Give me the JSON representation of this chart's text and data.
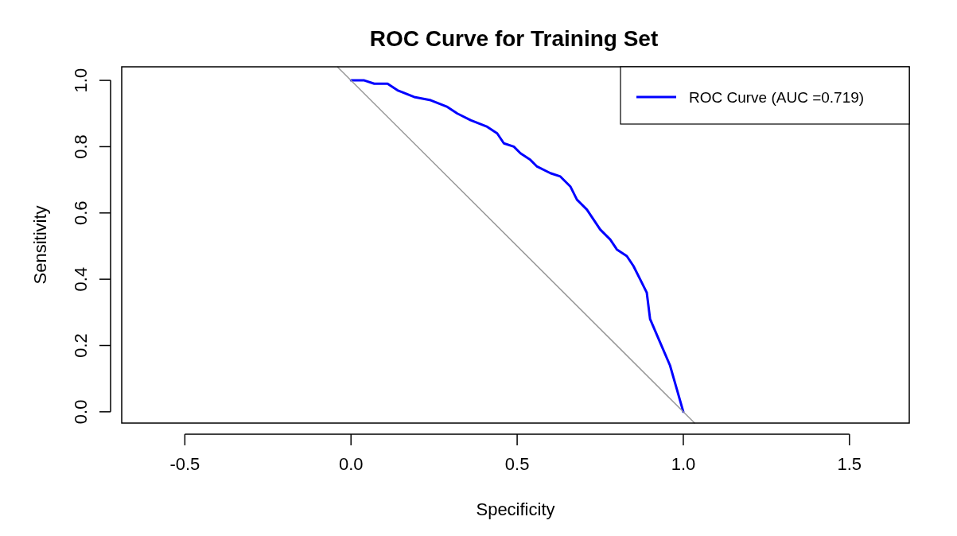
{
  "chart_data": {
    "type": "line",
    "title": "ROC Curve for Training Set",
    "xlabel": "Specificity",
    "ylabel": "Sensitivity",
    "xlim": [
      -0.69,
      1.68
    ],
    "ylim": [
      -0.034,
      1.041
    ],
    "xticks": [
      {
        "value": -0.5,
        "label": "-0.5"
      },
      {
        "value": 0,
        "label": "0.0"
      },
      {
        "value": 0.5,
        "label": "0.5"
      },
      {
        "value": 1,
        "label": "1.0"
      },
      {
        "value": 1.5,
        "label": "1.5"
      }
    ],
    "yticks": [
      {
        "value": 0,
        "label": "0.0"
      },
      {
        "value": 0.2,
        "label": "0.2"
      },
      {
        "value": 0.4,
        "label": "0.4"
      },
      {
        "value": 0.6,
        "label": "0.6"
      },
      {
        "value": 0.8,
        "label": "0.8"
      },
      {
        "value": 1,
        "label": "1.0"
      }
    ],
    "legend": "top right",
    "grid": false,
    "marker": "none",
    "line_style": "solid",
    "series": [
      {
        "name": "ROC Curve (AUC =0.719)",
        "color": "#0000ff",
        "x": [
          0,
          0.04,
          0.07,
          0.11,
          0.14,
          0.19,
          0.24,
          0.29,
          0.32,
          0.36,
          0.41,
          0.44,
          0.46,
          0.49,
          0.51,
          0.54,
          0.56,
          0.6,
          0.63,
          0.66,
          0.68,
          0.71,
          0.73,
          0.75,
          0.78,
          0.8,
          0.83,
          0.85,
          0.87,
          0.89,
          0.9,
          0.93,
          0.96,
          0.98,
          1
        ],
        "values": [
          1,
          1,
          0.99,
          0.99,
          0.97,
          0.95,
          0.94,
          0.92,
          0.9,
          0.88,
          0.86,
          0.84,
          0.81,
          0.8,
          0.78,
          0.76,
          0.74,
          0.72,
          0.71,
          0.68,
          0.64,
          0.61,
          0.58,
          0.55,
          0.52,
          0.49,
          0.47,
          0.44,
          0.4,
          0.36,
          0.28,
          0.21,
          0.14,
          0.07,
          0
        ]
      },
      {
        "color": "#999999",
        "x": [
          -0.04,
          1.034
        ],
        "values": [
          1.04,
          -0.034
        ]
      }
    ]
  }
}
